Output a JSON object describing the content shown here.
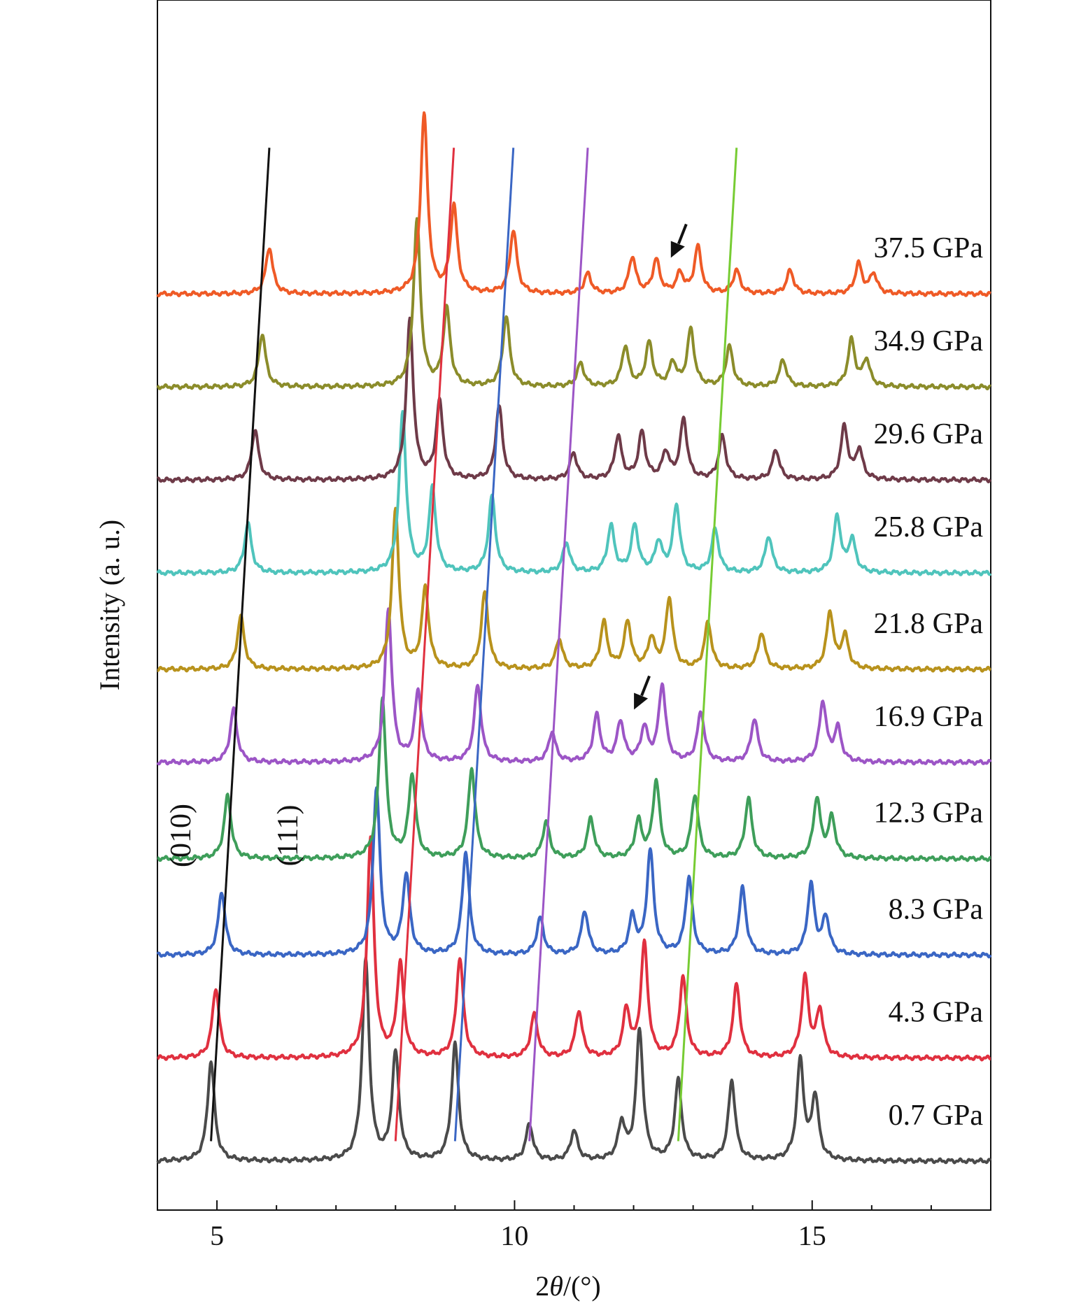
{
  "chart_data": {
    "type": "line",
    "title": "",
    "xlabel_prefix": "2",
    "xlabel_theta": "θ",
    "xlabel_suffix": "/(°)",
    "ylabel": "Intensity (a. u.)",
    "xlim": [
      4.0,
      18.0
    ],
    "xticks": [
      5,
      10,
      15
    ],
    "grid": false,
    "legend": "none",
    "series": [
      {
        "name": "0.7 GPa",
        "label": "0.7 GPa",
        "color": "#4a4a4a",
        "baseline": 0.0,
        "shift": 0.0,
        "noise": 0.02,
        "peaks": [
          [
            4.9,
            1.5
          ],
          [
            7.5,
            3.0
          ],
          [
            8.0,
            1.6
          ],
          [
            9.0,
            1.75
          ],
          [
            10.25,
            0.55
          ],
          [
            11.0,
            0.45
          ],
          [
            11.8,
            0.55
          ],
          [
            12.1,
            1.95
          ],
          [
            12.75,
            1.2
          ],
          [
            13.65,
            1.2
          ],
          [
            14.8,
            1.5
          ],
          [
            15.05,
            0.95
          ]
        ]
      },
      {
        "name": "4.3 GPa",
        "label": "4.3 GPa",
        "color": "#e0303f",
        "baseline": 1.55,
        "shift": 0.08,
        "noise": 0.02,
        "peaks": [
          [
            4.9,
            1.05
          ],
          [
            7.5,
            3.3
          ],
          [
            8.0,
            1.4
          ],
          [
            9.0,
            1.5
          ],
          [
            10.25,
            0.65
          ],
          [
            11.0,
            0.7
          ],
          [
            11.8,
            0.7
          ],
          [
            12.1,
            1.7
          ],
          [
            12.75,
            1.2
          ],
          [
            13.65,
            1.1
          ],
          [
            14.8,
            1.2
          ],
          [
            15.05,
            0.7
          ]
        ]
      },
      {
        "name": "8.3 GPa",
        "label": "8.3 GPa",
        "color": "#3a66c4",
        "baseline": 3.1,
        "shift": 0.18,
        "noise": 0.02,
        "peaks": [
          [
            4.9,
            0.95
          ],
          [
            7.5,
            2.5
          ],
          [
            8.0,
            1.2
          ],
          [
            9.0,
            1.55
          ],
          [
            10.25,
            0.55
          ],
          [
            11.0,
            0.65
          ],
          [
            11.8,
            0.55
          ],
          [
            12.1,
            1.55
          ],
          [
            12.75,
            1.15
          ],
          [
            13.65,
            1.0
          ],
          [
            14.8,
            1.05
          ],
          [
            15.05,
            0.55
          ]
        ]
      },
      {
        "name": "12.3 GPa",
        "label": "12.3 GPa",
        "color": "#3e9e5a",
        "baseline": 4.55,
        "shift": 0.28,
        "noise": 0.02,
        "peaks": [
          [
            4.9,
            0.95
          ],
          [
            7.5,
            2.4
          ],
          [
            8.0,
            1.25
          ],
          [
            9.0,
            1.35
          ],
          [
            10.25,
            0.55
          ],
          [
            11.0,
            0.6
          ],
          [
            11.8,
            0.55
          ],
          [
            12.1,
            1.15
          ],
          [
            12.75,
            0.95
          ],
          [
            13.65,
            0.9
          ],
          [
            14.8,
            0.9
          ],
          [
            15.05,
            0.6
          ]
        ]
      },
      {
        "name": "16.9 GPa",
        "label": "16.9 GPa",
        "color": "#9c55c6",
        "baseline": 6.0,
        "shift": 0.38,
        "noise": 0.02,
        "peaks": [
          [
            4.9,
            0.8
          ],
          [
            7.5,
            2.3
          ],
          [
            8.0,
            1.05
          ],
          [
            9.0,
            1.15
          ],
          [
            10.25,
            0.45
          ],
          [
            11.0,
            0.7
          ],
          [
            11.4,
            0.6
          ],
          [
            11.8,
            0.5
          ],
          [
            12.1,
            1.15
          ],
          [
            12.75,
            0.75
          ],
          [
            13.65,
            0.65
          ],
          [
            14.8,
            0.9
          ],
          [
            15.05,
            0.5
          ]
        ]
      },
      {
        "name": "21.8 GPa",
        "label": "21.8 GPa",
        "color": "#b8921c",
        "baseline": 7.4,
        "shift": 0.5,
        "noise": 0.02,
        "peaks": [
          [
            4.9,
            0.8
          ],
          [
            7.5,
            2.4
          ],
          [
            8.0,
            1.2
          ],
          [
            9.0,
            1.15
          ],
          [
            10.25,
            0.45
          ],
          [
            11.0,
            0.7
          ],
          [
            11.4,
            0.7
          ],
          [
            11.8,
            0.45
          ],
          [
            12.1,
            1.05
          ],
          [
            12.75,
            0.7
          ],
          [
            13.65,
            0.55
          ],
          [
            14.8,
            0.85
          ],
          [
            15.05,
            0.5
          ]
        ]
      },
      {
        "name": "25.8 GPa",
        "label": "25.8 GPa",
        "color": "#4fc4bc",
        "baseline": 8.85,
        "shift": 0.62,
        "noise": 0.02,
        "peaks": [
          [
            4.9,
            0.75
          ],
          [
            7.5,
            2.4
          ],
          [
            8.0,
            1.25
          ],
          [
            9.0,
            1.15
          ],
          [
            10.25,
            0.45
          ],
          [
            11.0,
            0.7
          ],
          [
            11.4,
            0.7
          ],
          [
            11.8,
            0.45
          ],
          [
            12.1,
            1.0
          ],
          [
            12.75,
            0.65
          ],
          [
            13.65,
            0.55
          ],
          [
            14.8,
            0.85
          ],
          [
            15.05,
            0.5
          ]
        ]
      },
      {
        "name": "29.6 GPa",
        "label": "29.6 GPa",
        "color": "#6e3a48",
        "baseline": 10.25,
        "shift": 0.74,
        "noise": 0.02,
        "peaks": [
          [
            4.9,
            0.75
          ],
          [
            7.5,
            2.4
          ],
          [
            8.0,
            1.15
          ],
          [
            9.0,
            1.1
          ],
          [
            10.25,
            0.4
          ],
          [
            11.0,
            0.65
          ],
          [
            11.4,
            0.7
          ],
          [
            11.8,
            0.4
          ],
          [
            12.1,
            0.9
          ],
          [
            12.75,
            0.65
          ],
          [
            13.65,
            0.45
          ],
          [
            14.8,
            0.8
          ],
          [
            15.05,
            0.45
          ]
        ]
      },
      {
        "name": "34.9 GPa",
        "label": "34.9 GPa",
        "color": "#8b8c2a",
        "baseline": 11.65,
        "shift": 0.86,
        "noise": 0.02,
        "peaks": [
          [
            4.9,
            0.8
          ],
          [
            7.5,
            2.5
          ],
          [
            8.0,
            1.15
          ],
          [
            9.0,
            1.05
          ],
          [
            10.25,
            0.35
          ],
          [
            11.0,
            0.6
          ],
          [
            11.4,
            0.65
          ],
          [
            11.8,
            0.35
          ],
          [
            12.1,
            0.85
          ],
          [
            12.75,
            0.6
          ],
          [
            13.65,
            0.4
          ],
          [
            14.8,
            0.7
          ],
          [
            15.05,
            0.4
          ]
        ]
      },
      {
        "name": "37.5 GPa",
        "label": "37.5 GPa",
        "color": "#ef5a26",
        "baseline": 13.05,
        "shift": 0.98,
        "noise": 0.02,
        "peaks": [
          [
            4.9,
            0.7
          ],
          [
            7.5,
            2.7
          ],
          [
            8.0,
            1.3
          ],
          [
            9.0,
            0.95
          ],
          [
            10.25,
            0.3
          ],
          [
            11.0,
            0.55
          ],
          [
            11.4,
            0.5
          ],
          [
            11.8,
            0.3
          ],
          [
            12.1,
            0.7
          ],
          [
            12.75,
            0.35
          ],
          [
            13.65,
            0.35
          ],
          [
            14.8,
            0.45
          ],
          [
            15.05,
            0.3
          ]
        ]
      }
    ],
    "guide_lines": [
      {
        "color": "#111111",
        "peak": 4.9
      },
      {
        "color": "#e0303f",
        "peak": 8.0
      },
      {
        "color": "#3a66c4",
        "peak": 9.0
      },
      {
        "color": "#9c55c6",
        "peak": 10.25
      },
      {
        "color": "#77cc33",
        "peak": 12.75
      }
    ],
    "annotations": [
      {
        "text": "(010)",
        "x": 4.55,
        "y": 4.9
      },
      {
        "text": "(111)",
        "x": 6.35,
        "y": 4.9
      }
    ],
    "arrows": [
      {
        "x": 12.72,
        "y": 13.7
      },
      {
        "x": 12.1,
        "y": 6.9
      }
    ]
  }
}
